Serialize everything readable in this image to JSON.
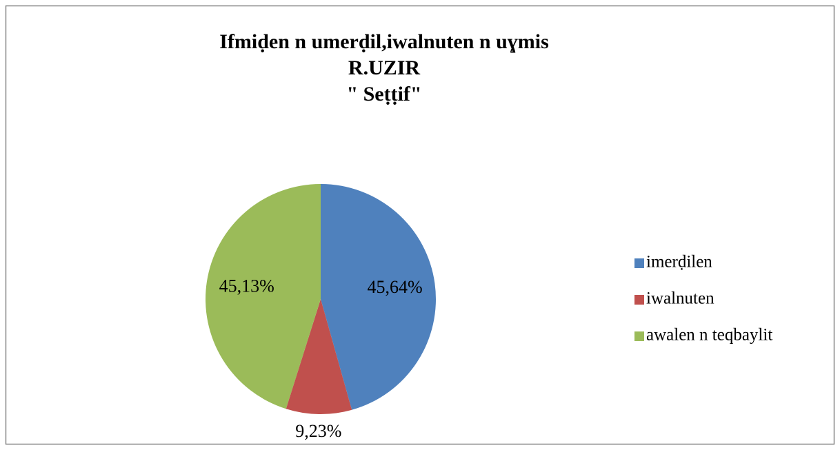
{
  "chart_data": {
    "type": "pie",
    "title": [
      "Ifmiḍen n umerḍil,iwalnuten n uɣmis",
      "R.UZIR",
      "\" Seṭṭif\""
    ],
    "categories": [
      "imerḍilen",
      "iwalnuten",
      "awalen n teqbaylit"
    ],
    "values": [
      45.64,
      9.23,
      45.13
    ],
    "value_labels": [
      "45,64%",
      "9,23%",
      "45,13%"
    ],
    "colors": [
      "#4f81bd",
      "#c0504d",
      "#9bbb59"
    ],
    "legend": "right"
  }
}
